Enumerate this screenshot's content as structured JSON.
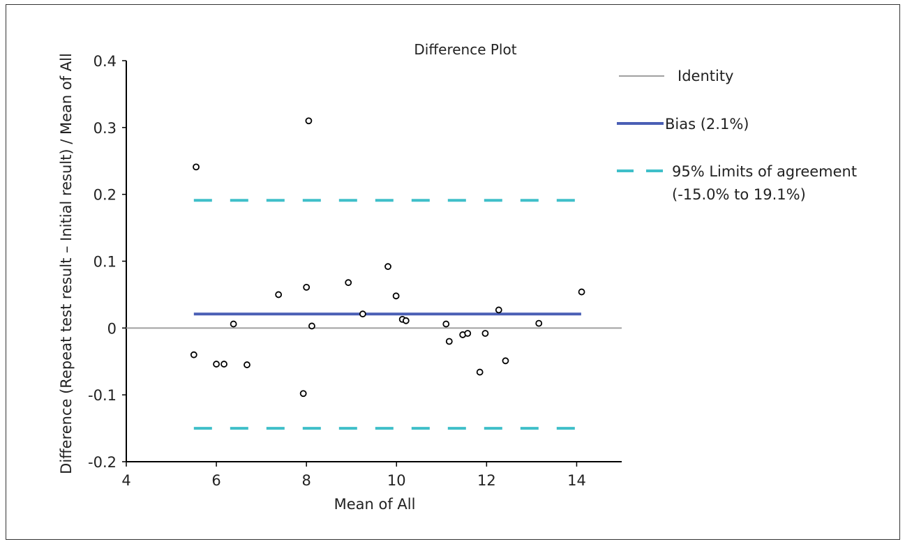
{
  "chart_data": {
    "type": "scatter",
    "title": "Difference Plot",
    "xlabel": "Mean of All",
    "ylabel": "Difference (Repeat test result – Initial result) / Mean of All",
    "xlim": [
      4,
      15
    ],
    "ylim": [
      -0.2,
      0.4
    ],
    "x_ticks": [
      4,
      6,
      8,
      10,
      12,
      14
    ],
    "x_tick_labels": [
      "4",
      "6",
      "8",
      "10",
      "12",
      "14"
    ],
    "y_ticks": [
      -0.2,
      -0.1,
      0,
      0.1,
      0.2,
      0.3,
      0.4
    ],
    "y_tick_labels": [
      "-0.2",
      "-0.1",
      "0",
      "0.1",
      "0.2",
      "0.3",
      "0.4"
    ],
    "grid": false,
    "legend_placement": "right",
    "reference_lines": {
      "identity": {
        "y": 0,
        "x_range": [
          4,
          15
        ],
        "color": "#a0a0a0",
        "style": "solid"
      },
      "bias": {
        "y": 0.021,
        "x_range": [
          5.5,
          14.1
        ],
        "color": "#4a5fb5",
        "style": "solid"
      },
      "loa_upper": {
        "y": 0.191,
        "x_range": [
          5.5,
          14.1
        ],
        "color": "#3fbfc9",
        "style": "dashed"
      },
      "loa_lower": {
        "y": -0.15,
        "x_range": [
          5.5,
          14.1
        ],
        "color": "#3fbfc9",
        "style": "dashed"
      }
    },
    "legend": [
      {
        "key": "identity",
        "label": "Identity"
      },
      {
        "key": "bias",
        "label": "Bias (2.1%)"
      },
      {
        "key": "loa",
        "label": "95% Limits of agreement",
        "label_line2": "(-15.0% to 19.1%)"
      }
    ],
    "points": [
      {
        "x": 5.5,
        "y": -0.04
      },
      {
        "x": 5.55,
        "y": 0.241
      },
      {
        "x": 6.0,
        "y": -0.054
      },
      {
        "x": 6.17,
        "y": -0.054
      },
      {
        "x": 6.38,
        "y": 0.006
      },
      {
        "x": 6.68,
        "y": -0.055
      },
      {
        "x": 7.38,
        "y": 0.05
      },
      {
        "x": 7.93,
        "y": -0.098
      },
      {
        "x": 8.0,
        "y": 0.061
      },
      {
        "x": 8.05,
        "y": 0.31
      },
      {
        "x": 8.12,
        "y": 0.003
      },
      {
        "x": 8.93,
        "y": 0.068
      },
      {
        "x": 9.25,
        "y": 0.021
      },
      {
        "x": 9.81,
        "y": 0.092
      },
      {
        "x": 9.99,
        "y": 0.048
      },
      {
        "x": 10.13,
        "y": 0.013
      },
      {
        "x": 10.21,
        "y": 0.011
      },
      {
        "x": 11.1,
        "y": 0.006
      },
      {
        "x": 11.17,
        "y": -0.02
      },
      {
        "x": 11.47,
        "y": -0.01
      },
      {
        "x": 11.58,
        "y": -0.008
      },
      {
        "x": 11.85,
        "y": -0.066
      },
      {
        "x": 11.97,
        "y": -0.008
      },
      {
        "x": 12.27,
        "y": 0.027
      },
      {
        "x": 12.42,
        "y": -0.049
      },
      {
        "x": 13.16,
        "y": 0.007
      },
      {
        "x": 14.11,
        "y": 0.054
      }
    ]
  }
}
